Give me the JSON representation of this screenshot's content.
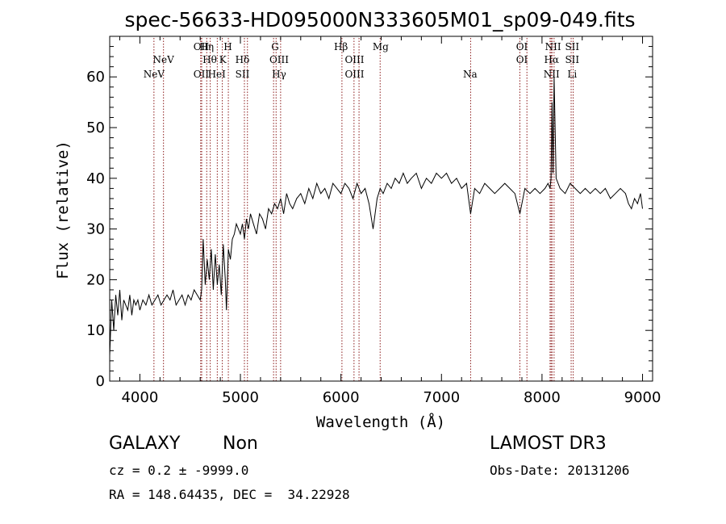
{
  "chart_data": {
    "type": "line",
    "title": "spec-56633-HD095000N333605M01_sp09-049.fits",
    "xlabel": "Wavelength (Å)",
    "ylabel": "Flux (relative)",
    "xlim": [
      3700,
      9100
    ],
    "ylim": [
      0,
      68
    ],
    "xticks": [
      4000,
      5000,
      6000,
      7000,
      8000,
      9000
    ],
    "yticks": [
      0,
      10,
      20,
      30,
      40,
      50,
      60
    ],
    "grid": false,
    "series": [
      {
        "color": "#000000",
        "x": [
          3700,
          3720,
          3740,
          3760,
          3780,
          3800,
          3820,
          3840,
          3860,
          3880,
          3900,
          3920,
          3940,
          3960,
          3980,
          4000,
          4030,
          4060,
          4090,
          4120,
          4150,
          4180,
          4210,
          4240,
          4270,
          4300,
          4330,
          4360,
          4390,
          4420,
          4450,
          4480,
          4510,
          4540,
          4570,
          4600,
          4615,
          4630,
          4650,
          4670,
          4690,
          4710,
          4730,
          4750,
          4770,
          4790,
          4810,
          4830,
          4850,
          4861,
          4880,
          4900,
          4920,
          4940,
          4960,
          4980,
          5000,
          5020,
          5040,
          5060,
          5080,
          5100,
          5130,
          5160,
          5190,
          5220,
          5250,
          5280,
          5310,
          5340,
          5370,
          5400,
          5430,
          5460,
          5490,
          5520,
          5560,
          5600,
          5640,
          5680,
          5720,
          5760,
          5800,
          5840,
          5880,
          5920,
          5960,
          6000,
          6040,
          6080,
          6120,
          6160,
          6200,
          6240,
          6280,
          6320,
          6360,
          6390,
          6420,
          6460,
          6500,
          6540,
          6580,
          6620,
          6660,
          6700,
          6750,
          6800,
          6850,
          6900,
          6950,
          7000,
          7050,
          7100,
          7150,
          7200,
          7250,
          7290,
          7330,
          7380,
          7430,
          7480,
          7530,
          7580,
          7630,
          7680,
          7730,
          7780,
          7830,
          7880,
          7930,
          7980,
          8030,
          8060,
          8080,
          8090,
          8100,
          8110,
          8120,
          8140,
          8180,
          8230,
          8280,
          8330,
          8380,
          8430,
          8480,
          8530,
          8580,
          8630,
          8680,
          8730,
          8780,
          8830,
          8860,
          8890,
          8920,
          8950,
          8980,
          9000
        ],
        "values": [
          5,
          16,
          10,
          17,
          13,
          18,
          12,
          16,
          15,
          14,
          17,
          13,
          16,
          15,
          16,
          14,
          16,
          15,
          17,
          15,
          16,
          17,
          15,
          16,
          17,
          16,
          18,
          15,
          16,
          17,
          15,
          17,
          16,
          18,
          17,
          16,
          18,
          28,
          19,
          24,
          20,
          26,
          18,
          25,
          19,
          23,
          17,
          27,
          20,
          14,
          26,
          24,
          28,
          29,
          31,
          30,
          29,
          31,
          28,
          32,
          30,
          33,
          31,
          29,
          33,
          32,
          30,
          34,
          33,
          35,
          34,
          36,
          33,
          37,
          35,
          34,
          36,
          37,
          35,
          38,
          36,
          39,
          37,
          38,
          36,
          39,
          38,
          37,
          39,
          38,
          36,
          39,
          37,
          38,
          35,
          30,
          36,
          38,
          37,
          39,
          38,
          40,
          39,
          41,
          39,
          40,
          41,
          38,
          40,
          39,
          41,
          40,
          41,
          39,
          40,
          38,
          39,
          33,
          38,
          37,
          39,
          38,
          37,
          38,
          39,
          38,
          37,
          33,
          38,
          37,
          38,
          37,
          38,
          39,
          38,
          40,
          55,
          41,
          60,
          40,
          38,
          37,
          39,
          38,
          37,
          38,
          37,
          38,
          37,
          38,
          36,
          37,
          38,
          37,
          35,
          34,
          36,
          35,
          37,
          34
        ]
      }
    ],
    "spectral_lines": [
      {
        "label": "NeV",
        "x": 4140,
        "row": 3
      },
      {
        "label": "NeV",
        "x": 4235,
        "row": 2
      },
      {
        "label": "OII",
        "x": 4610,
        "row": 1
      },
      {
        "label": "OII",
        "x": 4610,
        "row": 3
      },
      {
        "label": "Hη",
        "x": 4665,
        "row": 1
      },
      {
        "label": "Hθ",
        "x": 4695,
        "row": 2
      },
      {
        "label": "HeI",
        "x": 4765,
        "row": 3
      },
      {
        "label": "K",
        "x": 4825,
        "row": 2
      },
      {
        "label": "H",
        "x": 4875,
        "row": 1
      },
      {
        "label": "Hδ",
        "x": 5020,
        "row": 2
      },
      {
        "label": "SII",
        "x": 5020,
        "row": 3
      },
      {
        "label": "G",
        "x": 5345,
        "row": 1
      },
      {
        "label": "OIII",
        "x": 5385,
        "row": 2
      },
      {
        "label": "Hγ",
        "x": 5385,
        "row": 3
      },
      {
        "label": "Hβ",
        "x": 6000,
        "row": 1
      },
      {
        "label": "OIII",
        "x": 6135,
        "row": 2
      },
      {
        "label": "OIII",
        "x": 6135,
        "row": 3
      },
      {
        "label": "Mg",
        "x": 6395,
        "row": 1
      },
      {
        "label": "Na",
        "x": 7285,
        "row": 3
      },
      {
        "label": "OI",
        "x": 7800,
        "row": 1
      },
      {
        "label": "OI",
        "x": 7800,
        "row": 2
      },
      {
        "label": "NII",
        "x": 8110,
        "row": 1
      },
      {
        "label": "Hα",
        "x": 8095,
        "row": 2
      },
      {
        "label": "NII",
        "x": 8095,
        "row": 3
      },
      {
        "label": "SII",
        "x": 8300,
        "row": 1
      },
      {
        "label": "SII",
        "x": 8300,
        "row": 2
      },
      {
        "label": "Li",
        "x": 8300,
        "row": 3
      }
    ],
    "marker_lines_x": [
      4140,
      4235,
      4605,
      4615,
      4665,
      4700,
      4770,
      4820,
      4880,
      5040,
      5070,
      5330,
      5355,
      5400,
      6010,
      6130,
      6180,
      6390,
      7290,
      7780,
      7850,
      8080,
      8090,
      8100,
      8120,
      8290,
      8310
    ]
  },
  "info": {
    "object_class": "GALAXY",
    "subclass": "Non",
    "survey": "LAMOST DR3",
    "cz_line": "cz = 0.2 ± -9999.0",
    "obs_date_line": "Obs-Date: 20131206",
    "radec_line": "RA = 148.64435, DEC =  34.22928"
  },
  "colors": {
    "spectrum": "#000000",
    "marker_line": "#8b1a1a",
    "axes": "#000000",
    "background": "#ffffff"
  }
}
